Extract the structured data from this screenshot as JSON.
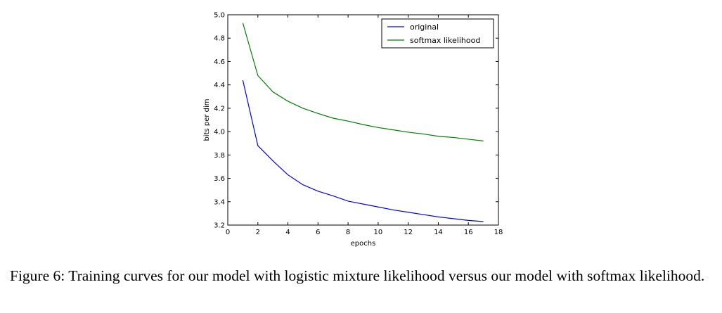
{
  "chart_data": {
    "type": "line",
    "title": "",
    "xlabel": "epochs",
    "ylabel": "bits per dim",
    "xlim": [
      0,
      18
    ],
    "ylim": [
      3.2,
      5.0
    ],
    "xticks": [
      "0",
      "2",
      "4",
      "6",
      "8",
      "10",
      "12",
      "14",
      "16",
      "18"
    ],
    "yticks": [
      "3.2",
      "3.4",
      "3.6",
      "3.8",
      "4.0",
      "4.2",
      "4.4",
      "4.6",
      "4.8",
      "5.0"
    ],
    "grid": false,
    "legend_position": "top-right",
    "series": [
      {
        "name": "original",
        "color": "#0000ff",
        "x": [
          1,
          2,
          3,
          4,
          5,
          6,
          7,
          8,
          9,
          10,
          11,
          12,
          13,
          14,
          15,
          16,
          17
        ],
        "y": [
          4.44,
          3.88,
          3.75,
          3.63,
          3.545,
          3.49,
          3.45,
          3.405,
          3.38,
          3.355,
          3.33,
          3.31,
          3.29,
          3.27,
          3.255,
          3.24,
          3.23
        ]
      },
      {
        "name": "softmax likelihood",
        "color": "#008000",
        "x": [
          1,
          2,
          3,
          4,
          5,
          6,
          7,
          8,
          9,
          10,
          11,
          12,
          13,
          14,
          15,
          16,
          17
        ],
        "y": [
          4.93,
          4.48,
          4.34,
          4.26,
          4.2,
          4.155,
          4.115,
          4.09,
          4.06,
          4.035,
          4.015,
          3.995,
          3.98,
          3.96,
          3.95,
          3.935,
          3.92
        ]
      }
    ]
  },
  "caption": "Figure 6:  Training curves for our model with logistic mixture likelihood versus our model with softmax likelihood."
}
